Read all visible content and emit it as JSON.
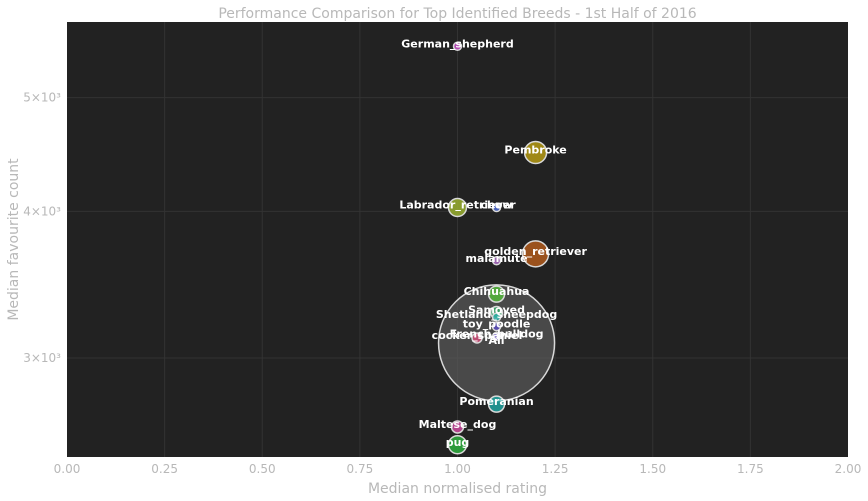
{
  "chart_data": {
    "type": "scatter",
    "title": "Performance Comparison for Top Identified Breeds - 1st Half of 2016",
    "xlabel": "Median normalised rating",
    "ylabel": "Median favourite count",
    "xlim": [
      0,
      2.0
    ],
    "ylim": [
      2470,
      5800
    ],
    "yscale": "log",
    "grid": true,
    "x_ticks": [
      "0.00",
      "0.25",
      "0.50",
      "0.75",
      "1.00",
      "1.25",
      "1.50",
      "1.75",
      "2.00"
    ],
    "y_ticks": [
      {
        "value": 3000,
        "label": "3×10³"
      },
      {
        "value": 4000,
        "label": "4×10³"
      },
      {
        "value": 5000,
        "label": "5×10³"
      }
    ],
    "points": [
      {
        "name": "German_shepherd",
        "x": 1.0,
        "y": 5530,
        "size": 4,
        "color": "#cc55cc"
      },
      {
        "name": "Pembroke",
        "x": 1.2,
        "y": 4490,
        "size": 11,
        "color": "#b59a14"
      },
      {
        "name": "Labrador_retriever",
        "x": 1.0,
        "y": 4030,
        "size": 9,
        "color": "#9ab030"
      },
      {
        "name": "chow",
        "x": 1.1,
        "y": 4030,
        "size": 4,
        "color": "#4d6bd6"
      },
      {
        "name": "golden_retriever",
        "x": 1.2,
        "y": 3680,
        "size": 13,
        "color": "#b05a1c"
      },
      {
        "name": "malamute",
        "x": 1.1,
        "y": 3630,
        "size": 4,
        "color": "#b070c8"
      },
      {
        "name": "Chihuahua",
        "x": 1.1,
        "y": 3400,
        "size": 8,
        "color": "#55b83c"
      },
      {
        "name": "Samoyed",
        "x": 1.1,
        "y": 3280,
        "size": 6,
        "color": "#3aab6a"
      },
      {
        "name": "Shetland_sheepdog",
        "x": 1.1,
        "y": 3250,
        "size": 4,
        "color": "#2fb0a8"
      },
      {
        "name": "toy_poodle",
        "x": 1.1,
        "y": 3190,
        "size": 4,
        "color": "#5a4cc0"
      },
      {
        "name": "French_bulldog",
        "x": 1.1,
        "y": 3130,
        "size": 4,
        "color": "#7f67d4"
      },
      {
        "name": "cocker_spaniel",
        "x": 1.05,
        "y": 3120,
        "size": 5,
        "color": "#d0507a"
      },
      {
        "name": "All",
        "x": 1.1,
        "y": 3090,
        "size": 58,
        "color": "#5a5a5a"
      },
      {
        "name": "Pomeranian",
        "x": 1.1,
        "y": 2740,
        "size": 8,
        "color": "#1fa3a0"
      },
      {
        "name": "Maltese_dog",
        "x": 1.0,
        "y": 2620,
        "size": 6,
        "color": "#cc4aa0"
      },
      {
        "name": "pug",
        "x": 1.0,
        "y": 2530,
        "size": 9,
        "color": "#2faf3f"
      }
    ],
    "colors": {
      "plot_background": "#222222",
      "grid": "#333333",
      "text": "#b8b8b8",
      "marker_edge": "#d8d8d8",
      "annotation": "#ffffff"
    }
  }
}
